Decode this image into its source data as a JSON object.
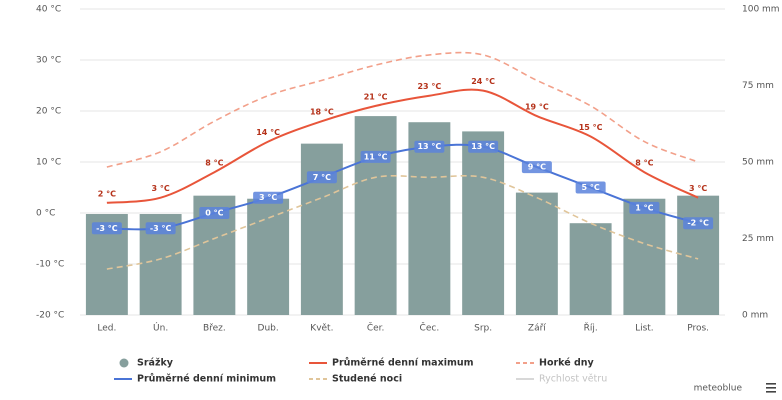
{
  "chart_data": {
    "type": "bar",
    "categories": [
      "Led.",
      "Ún.",
      "Břez.",
      "Dub.",
      "Květ.",
      "Čer.",
      "Čec.",
      "Srp.",
      "Září",
      "Říj.",
      "List.",
      "Pros."
    ],
    "ylim": [
      -20,
      40
    ],
    "yticks": [
      {
        "value": -20,
        "label": "-20 °C"
      },
      {
        "value": -10,
        "label": "-10 °C"
      },
      {
        "value": 0,
        "label": "0 °C"
      },
      {
        "value": 10,
        "label": "10 °C"
      },
      {
        "value": 20,
        "label": "20 °C"
      },
      {
        "value": 30,
        "label": "30 °C"
      },
      {
        "value": 40,
        "label": "40 °C"
      }
    ],
    "y2lim": [
      0,
      100
    ],
    "y2ticks": [
      {
        "value": 0,
        "label": "0 mm"
      },
      {
        "value": 25,
        "label": "25 mm"
      },
      {
        "value": 50,
        "label": "50 mm"
      },
      {
        "value": 75,
        "label": "75 mm"
      },
      {
        "value": 100,
        "label": "100 mm"
      }
    ],
    "grid": true,
    "series": [
      {
        "name": "Srážky",
        "type": "bar",
        "axis": "y2",
        "color": "#869f9d",
        "values": [
          33,
          33,
          39,
          38,
          56,
          65,
          63,
          60,
          40,
          30,
          38,
          39
        ]
      },
      {
        "name": "Průměrné denní maximum",
        "type": "line",
        "color": "#e8553a",
        "values": [
          2,
          3,
          8,
          14,
          18,
          21,
          23,
          24,
          19,
          15,
          8,
          3
        ],
        "value_labels": [
          "2 °C",
          "3 °C",
          "8 °C",
          "14 °C",
          "18 °C",
          "21 °C",
          "23 °C",
          "24 °C",
          "19 °C",
          "15 °C",
          "8 °C",
          "3 °C"
        ]
      },
      {
        "name": "Horké dny",
        "type": "line",
        "dashed": true,
        "color": "#f2a08a",
        "values": [
          9,
          12,
          18,
          23,
          26,
          29,
          31,
          31,
          26,
          21,
          14,
          10
        ]
      },
      {
        "name": "Průměrné denní minimum",
        "type": "line",
        "color": "#4a74d6",
        "values": [
          -3,
          -3,
          0,
          3,
          7,
          11,
          13,
          13,
          9,
          5,
          1,
          -2
        ],
        "value_labels": [
          "-3 °C",
          "-3 °C",
          "0 °C",
          "3 °C",
          "7 °C",
          "11 °C",
          "13 °C",
          "13 °C",
          "9 °C",
          "5 °C",
          "1 °C",
          "-2 °C"
        ]
      },
      {
        "name": "Studené noci",
        "type": "line",
        "dashed": true,
        "color": "#e0c59a",
        "values": [
          -11,
          -9,
          -5,
          -1,
          3,
          7,
          7,
          7,
          3,
          -2,
          -6,
          -9
        ]
      }
    ],
    "inactive_legend": [
      {
        "name": "Rychlost větru",
        "color": "#d8d8d8"
      }
    ],
    "brand": "meteoblue"
  }
}
